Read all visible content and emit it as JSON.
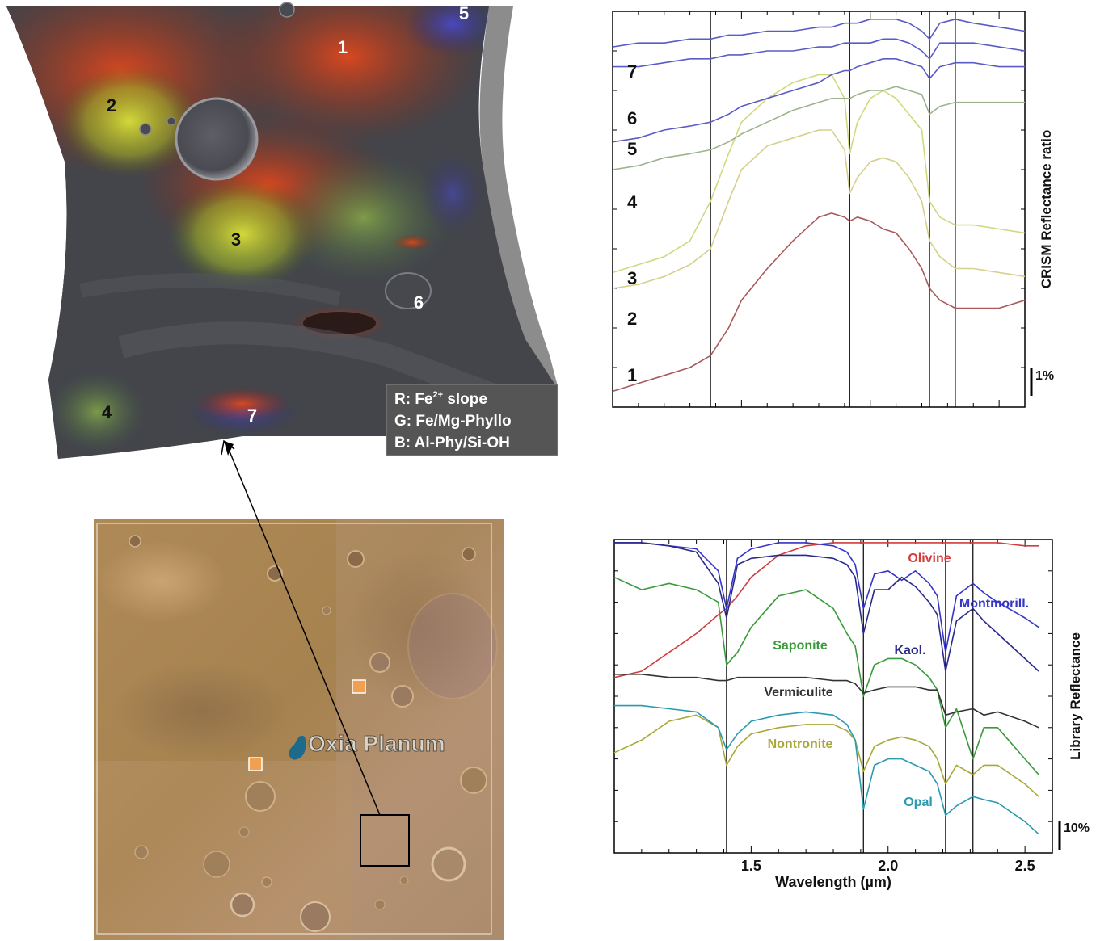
{
  "crism_map": {
    "labels": [
      "1",
      "2",
      "3",
      "4",
      "5",
      "6",
      "7"
    ],
    "legend": {
      "r_prefix": "R: Fe",
      "r_sup": "2+",
      "r_suffix": " slope",
      "g": "G: Fe/Mg-Phyllo",
      "b": "B: Al-Phy/Si-OH"
    }
  },
  "context_map": {
    "site_label": "Oxia Planum"
  },
  "chart_data": [
    {
      "type": "line",
      "ylabel": "CRISM Reflectance ratio",
      "scale_bar_label": "1%",
      "xlim": [
        1.0,
        2.6
      ],
      "ylim": [
        0,
        100
      ],
      "vertical_lines": [
        1.38,
        1.92,
        2.23,
        2.33
      ],
      "x": [
        1.0,
        1.1,
        1.2,
        1.3,
        1.38,
        1.45,
        1.5,
        1.6,
        1.7,
        1.8,
        1.85,
        1.9,
        1.92,
        1.95,
        2.0,
        2.05,
        2.1,
        2.15,
        2.2,
        2.23,
        2.27,
        2.33,
        2.4,
        2.5,
        2.6
      ],
      "series": [
        {
          "name": "1",
          "color": "#a85a5a",
          "values": [
            4,
            6,
            8,
            10,
            13,
            20,
            27,
            35,
            42,
            48,
            49,
            48,
            47,
            48,
            47,
            45,
            44,
            40,
            35,
            30,
            27,
            25,
            25,
            25,
            27
          ]
        },
        {
          "name": "2",
          "color": "#d6d08a",
          "values": [
            30,
            31,
            33,
            36,
            40,
            52,
            60,
            66,
            68,
            70,
            70,
            65,
            54,
            58,
            62,
            63,
            62,
            58,
            52,
            42,
            38,
            35,
            35,
            34,
            33
          ]
        },
        {
          "name": "3",
          "color": "#d2d87e",
          "values": [
            34,
            36,
            38,
            42,
            52,
            64,
            72,
            78,
            82,
            84,
            84,
            78,
            64,
            72,
            78,
            80,
            78,
            74,
            70,
            52,
            48,
            46,
            46,
            45,
            44
          ]
        },
        {
          "name": "4",
          "color": "#9cb48e",
          "values": [
            60,
            61,
            63,
            64,
            65,
            67,
            69,
            72,
            75,
            77,
            78,
            78,
            78,
            79,
            80,
            80,
            81,
            80,
            79,
            74,
            76,
            77,
            77,
            77,
            77
          ]
        },
        {
          "name": "5",
          "color": "#5a5cc6",
          "values": [
            67,
            68,
            70,
            71,
            72,
            74,
            76,
            78,
            80,
            82,
            84,
            85,
            85,
            86,
            87,
            88,
            88,
            87,
            86,
            83,
            86,
            87,
            87,
            86,
            86
          ]
        },
        {
          "name": "6",
          "color": "#5a5cc6",
          "values": [
            86,
            86,
            87,
            88,
            88,
            89,
            89,
            90,
            90,
            91,
            91,
            92,
            92,
            92,
            92,
            93,
            93,
            92,
            90,
            88,
            92,
            92,
            92,
            91,
            90
          ]
        },
        {
          "name": "7",
          "color": "#5a5cc6",
          "values": [
            91,
            92,
            92,
            93,
            93,
            94,
            94,
            95,
            95,
            96,
            96,
            97,
            97,
            97,
            98,
            98,
            98,
            97,
            95,
            93,
            97,
            98,
            97,
            96,
            95
          ]
        }
      ]
    },
    {
      "type": "line",
      "ylabel": "Library Reflectance",
      "xlabel": "Wavelength (µm)",
      "scale_bar_label": "10%",
      "xlim": [
        1.0,
        2.6
      ],
      "ylim": [
        0,
        100
      ],
      "xticks": [
        1.5,
        2.0,
        2.5
      ],
      "xtick_labels": [
        "1.5",
        "2.0",
        "2.5"
      ],
      "vertical_lines": [
        1.41,
        1.91,
        2.21,
        2.31
      ],
      "x": [
        1.0,
        1.1,
        1.2,
        1.3,
        1.38,
        1.41,
        1.45,
        1.5,
        1.6,
        1.7,
        1.8,
        1.85,
        1.88,
        1.91,
        1.95,
        2.0,
        2.05,
        2.1,
        2.15,
        2.18,
        2.21,
        2.25,
        2.31,
        2.35,
        2.4,
        2.5,
        2.55
      ],
      "series": [
        {
          "name": "Olivine",
          "color": "#d23c3c",
          "values": [
            56,
            58,
            64,
            70,
            76,
            78,
            82,
            88,
            95,
            98,
            99,
            99,
            99,
            99,
            99,
            99,
            99,
            99,
            99,
            99,
            99,
            99,
            99,
            99,
            99,
            98,
            98
          ]
        },
        {
          "name": "Montmorill.",
          "color": "#3434c8",
          "values": [
            99,
            99,
            98,
            97,
            90,
            78,
            94,
            97,
            99,
            99,
            98,
            96,
            92,
            78,
            89,
            90,
            87,
            90,
            86,
            82,
            64,
            82,
            86,
            83,
            80,
            75,
            72
          ]
        },
        {
          "name": "Kaol.",
          "color": "#2a2a8a",
          "values": [
            99,
            99,
            98,
            96,
            86,
            75,
            92,
            94,
            95,
            95,
            94,
            92,
            88,
            70,
            84,
            84,
            88,
            85,
            80,
            76,
            58,
            74,
            78,
            74,
            70,
            62,
            58
          ]
        },
        {
          "name": "Saponite",
          "color": "#3a9a3a",
          "values": [
            88,
            84,
            86,
            84,
            80,
            60,
            64,
            72,
            82,
            84,
            78,
            70,
            66,
            50,
            60,
            62,
            62,
            60,
            56,
            52,
            40,
            46,
            30,
            40,
            40,
            30,
            25
          ]
        },
        {
          "name": "Vermiculite",
          "color": "#333333",
          "values": [
            57,
            57,
            56,
            56,
            55,
            55,
            56,
            56,
            56,
            56,
            55,
            55,
            54,
            51,
            52,
            53,
            53,
            53,
            52,
            52,
            44,
            45,
            46,
            44,
            45,
            42,
            40
          ]
        },
        {
          "name": "Nontronite",
          "color": "#a8a83a",
          "values": [
            32,
            36,
            42,
            44,
            40,
            28,
            34,
            38,
            40,
            41,
            41,
            39,
            36,
            26,
            34,
            36,
            37,
            36,
            34,
            30,
            22,
            28,
            25,
            28,
            28,
            22,
            18
          ]
        },
        {
          "name": "Opal",
          "color": "#2a9ab0",
          "values": [
            47,
            47,
            46,
            45,
            40,
            33,
            38,
            42,
            44,
            45,
            44,
            41,
            36,
            14,
            28,
            30,
            30,
            28,
            26,
            22,
            12,
            15,
            18,
            17,
            16,
            10,
            6
          ]
        }
      ]
    }
  ]
}
